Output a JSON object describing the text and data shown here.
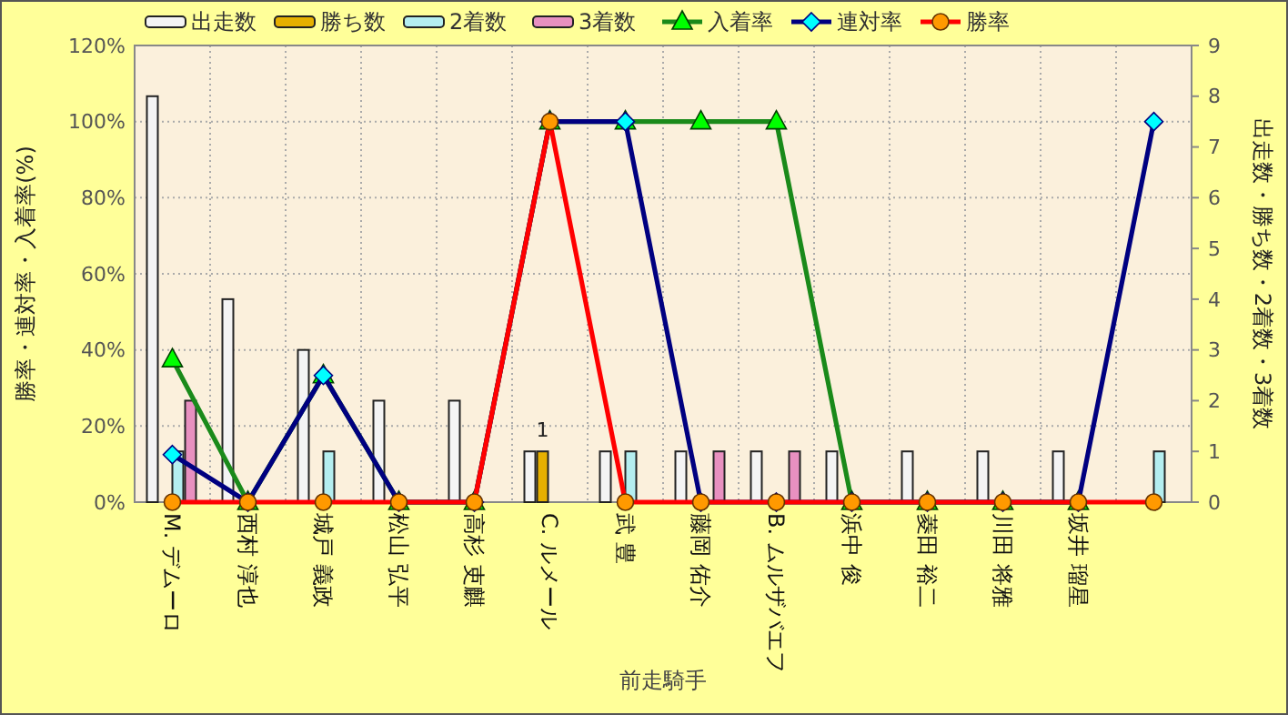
{
  "chart_data": {
    "type": "bar",
    "xlabel": "前走騎手",
    "ylabel": "勝率・連対率・入着率(%)",
    "y2label": "出走数・勝ち数・2着数・3着数",
    "categories": [
      "M. デムーロ",
      "西村 淳也",
      "城戸 義政",
      "松山 弘平",
      "高杉 吏麒",
      "C. ルメール",
      "武 豊",
      "藤岡 佑介",
      "B. ムルザバエフ",
      "浜中 俊",
      "菱田 裕二",
      "川田 将雅",
      "坂井 瑠星",
      null
    ],
    "series": [
      {
        "name": "出走数",
        "axis": "y2",
        "color": "#f4f4f4",
        "values": [
          8,
          4,
          3,
          2,
          2,
          1,
          1,
          1,
          1,
          1,
          1,
          1,
          1,
          0
        ]
      },
      {
        "name": "勝ち数",
        "axis": "y2",
        "color": "#e6b000",
        "values": [
          0,
          0,
          0,
          0,
          0,
          1,
          0,
          0,
          0,
          0,
          0,
          0,
          0,
          0
        ],
        "value_labels": [
          null,
          null,
          null,
          null,
          null,
          "1",
          null,
          null,
          null,
          null,
          null,
          null,
          null,
          null
        ]
      },
      {
        "name": "2着数",
        "axis": "y2",
        "color": "#b4eef0",
        "values": [
          1,
          0,
          1,
          0,
          0,
          0,
          1,
          0,
          0,
          0,
          0,
          0,
          0,
          1
        ]
      },
      {
        "name": "3着数",
        "axis": "y2",
        "color": "#e890c0",
        "values": [
          2,
          0,
          0,
          0,
          0,
          0,
          0,
          1,
          1,
          0,
          0,
          0,
          0,
          0
        ]
      },
      {
        "name": "入着率",
        "type": "line",
        "color": "#1a8a1a",
        "marker": "triangle",
        "values": [
          37.5,
          0,
          33.3,
          0,
          0,
          100,
          100,
          100,
          100,
          0,
          0,
          0,
          0,
          null
        ]
      },
      {
        "name": "連対率",
        "type": "line",
        "color": "#000080",
        "marker": "diamond",
        "values": [
          12.5,
          0,
          33.3,
          0,
          0,
          100,
          100,
          0,
          0,
          0,
          0,
          0,
          0,
          100
        ]
      },
      {
        "name": "勝率",
        "type": "line",
        "color": "#ff0000",
        "marker": "circle",
        "values": [
          0,
          0,
          0,
          0,
          0,
          100,
          0,
          0,
          0,
          0,
          0,
          0,
          0,
          0
        ]
      }
    ],
    "ylim": [
      0,
      120
    ],
    "yticks": [
      {
        "value": 0,
        "label": "0%"
      },
      {
        "value": 20,
        "label": "20%"
      },
      {
        "value": 40,
        "label": "40%"
      },
      {
        "value": 60,
        "label": "60%"
      },
      {
        "value": 80,
        "label": "80%"
      },
      {
        "value": 100,
        "label": "100%"
      },
      {
        "value": 120,
        "label": "120%"
      }
    ],
    "y2lim": [
      0,
      9
    ],
    "y2ticks": [
      0,
      1,
      2,
      3,
      4,
      5,
      6,
      7,
      8,
      9
    ],
    "grid": true,
    "legend": "top"
  }
}
